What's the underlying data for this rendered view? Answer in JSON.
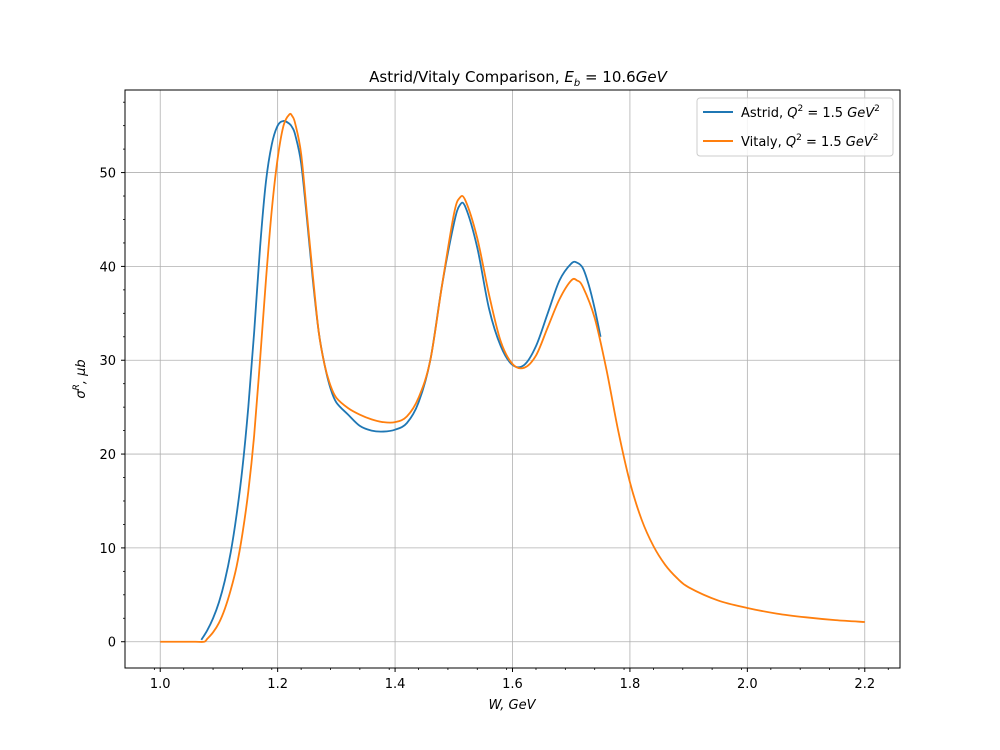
{
  "chart_data": {
    "type": "line",
    "title": {
      "prefix": "Astrid/Vitaly Comparison, ",
      "math_var": "E",
      "math_sub": "b",
      "math_rest": " = 10.6",
      "math_unit": "GeV"
    },
    "xlabel": "W, GeV",
    "ylabel": {
      "main": "σ",
      "sup": "R",
      "rest": ", μb"
    },
    "xlim": [
      0.94,
      2.26
    ],
    "ylim": [
      -2.8,
      58.8
    ],
    "xticks": [
      1.0,
      1.2,
      1.4,
      1.6,
      1.8,
      2.0,
      2.2
    ],
    "xtick_labels": [
      "1.0",
      "1.2",
      "1.4",
      "1.6",
      "1.8",
      "2.0",
      "2.2"
    ],
    "yticks": [
      0,
      10,
      20,
      30,
      40,
      50
    ],
    "ytick_labels": [
      "0",
      "10",
      "20",
      "30",
      "40",
      "50"
    ],
    "grid": true,
    "legend_position": "top-right",
    "series": [
      {
        "name": "Astrid, Q² = 1.5 GeV²",
        "legend": {
          "label": "Astrid, ",
          "q": "Q",
          "sup": "2",
          "eq": " = 1.5 ",
          "unit": "GeV",
          "unit_sup": "2"
        },
        "color": "#1f77b4",
        "x": [
          1.07,
          1.08,
          1.09,
          1.1,
          1.11,
          1.12,
          1.13,
          1.14,
          1.15,
          1.16,
          1.17,
          1.18,
          1.19,
          1.2,
          1.21,
          1.22,
          1.225,
          1.23,
          1.24,
          1.25,
          1.26,
          1.27,
          1.28,
          1.29,
          1.3,
          1.32,
          1.34,
          1.36,
          1.38,
          1.4,
          1.42,
          1.44,
          1.46,
          1.48,
          1.5,
          1.51,
          1.52,
          1.54,
          1.56,
          1.58,
          1.6,
          1.62,
          1.64,
          1.66,
          1.68,
          1.7,
          1.71,
          1.72,
          1.73,
          1.74,
          1.75
        ],
        "y": [
          0.2,
          1.2,
          2.5,
          4.2,
          6.5,
          9.5,
          13.5,
          18.5,
          25,
          33,
          42,
          49,
          53,
          55,
          55.5,
          55.2,
          54.8,
          54,
          51,
          45,
          38.5,
          33,
          29.5,
          27,
          25.5,
          24.2,
          23,
          22.5,
          22.4,
          22.6,
          23.3,
          25.5,
          30,
          38,
          44.5,
          46.5,
          46.3,
          42,
          35.5,
          31.5,
          29.5,
          29.5,
          31.5,
          35,
          38.5,
          40.3,
          40.4,
          39.8,
          38,
          35.5,
          32.5
        ]
      },
      {
        "name": "Vitaly, Q² = 1.5 GeV²",
        "legend": {
          "label": "Vitaly, ",
          "q": "Q",
          "sup": "2",
          "eq": " = 1.5 ",
          "unit": "GeV",
          "unit_sup": "2"
        },
        "color": "#ff7f0e",
        "x": [
          1.0,
          1.02,
          1.04,
          1.06,
          1.075,
          1.08,
          1.09,
          1.1,
          1.11,
          1.12,
          1.13,
          1.14,
          1.15,
          1.16,
          1.17,
          1.18,
          1.19,
          1.2,
          1.21,
          1.22,
          1.225,
          1.23,
          1.24,
          1.25,
          1.26,
          1.27,
          1.28,
          1.29,
          1.3,
          1.32,
          1.34,
          1.36,
          1.38,
          1.4,
          1.42,
          1.44,
          1.46,
          1.48,
          1.5,
          1.51,
          1.52,
          1.54,
          1.56,
          1.58,
          1.6,
          1.62,
          1.64,
          1.66,
          1.68,
          1.7,
          1.71,
          1.72,
          1.74,
          1.76,
          1.78,
          1.8,
          1.82,
          1.84,
          1.86,
          1.88,
          1.9,
          1.95,
          2.0,
          2.05,
          2.1,
          2.15,
          2.2
        ],
        "y": [
          0,
          0,
          0,
          0,
          0,
          0.3,
          1.0,
          2.0,
          3.5,
          5.5,
          8.0,
          11.5,
          16.0,
          22.0,
          30.0,
          38.5,
          46.0,
          51.5,
          55.0,
          56.2,
          56.0,
          55.2,
          52.0,
          45.5,
          39.0,
          33.0,
          29.5,
          27.3,
          26.0,
          24.9,
          24.2,
          23.7,
          23.4,
          23.4,
          24.0,
          26.0,
          30.0,
          38.0,
          45.5,
          47.3,
          47.0,
          43.0,
          37.0,
          32.0,
          29.6,
          29.2,
          30.5,
          33.5,
          36.5,
          38.5,
          38.5,
          37.8,
          34.5,
          29.0,
          22.5,
          17.0,
          13.0,
          10.2,
          8.2,
          6.8,
          5.8,
          4.4,
          3.6,
          3.0,
          2.6,
          2.3,
          2.1
        ]
      }
    ]
  }
}
